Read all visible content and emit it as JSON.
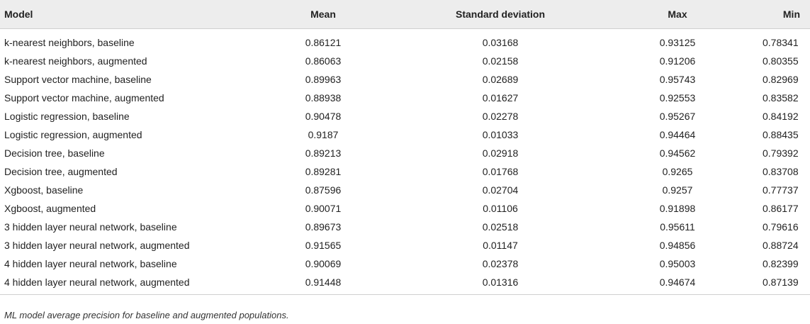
{
  "table": {
    "headers": [
      "Model",
      "Mean",
      "Standard deviation",
      "Max",
      "Min"
    ],
    "rows": [
      [
        "k-nearest neighbors, baseline",
        "0.86121",
        "0.03168",
        "0.93125",
        "0.78341"
      ],
      [
        "k-nearest neighbors, augmented",
        "0.86063",
        "0.02158",
        "0.91206",
        "0.80355"
      ],
      [
        "Support vector machine, baseline",
        "0.89963",
        "0.02689",
        "0.95743",
        "0.82969"
      ],
      [
        "Support vector machine, augmented",
        "0.88938",
        "0.01627",
        "0.92553",
        "0.83582"
      ],
      [
        "Logistic regression, baseline",
        "0.90478",
        "0.02278",
        "0.95267",
        "0.84192"
      ],
      [
        "Logistic regression, augmented",
        "0.9187",
        "0.01033",
        "0.94464",
        "0.88435"
      ],
      [
        "Decision tree, baseline",
        "0.89213",
        "0.02918",
        "0.94562",
        "0.79392"
      ],
      [
        "Decision tree, augmented",
        "0.89281",
        "0.01768",
        "0.9265",
        "0.83708"
      ],
      [
        "Xgboost, baseline",
        "0.87596",
        "0.02704",
        "0.9257",
        "0.77737"
      ],
      [
        "Xgboost, augmented",
        "0.90071",
        "0.01106",
        "0.91898",
        "0.86177"
      ],
      [
        "3 hidden layer neural network, baseline",
        "0.89673",
        "0.02518",
        "0.95611",
        "0.79616"
      ],
      [
        "3 hidden layer neural network, augmented",
        "0.91565",
        "0.01147",
        "0.94856",
        "0.88724"
      ],
      [
        "4 hidden layer neural network, baseline",
        "0.90069",
        "0.02378",
        "0.95003",
        "0.82399"
      ],
      [
        "4 hidden layer neural network, augmented",
        "0.91448",
        "0.01316",
        "0.94674",
        "0.87139"
      ]
    ]
  },
  "caption": "ML model average precision for baseline and augmented populations."
}
